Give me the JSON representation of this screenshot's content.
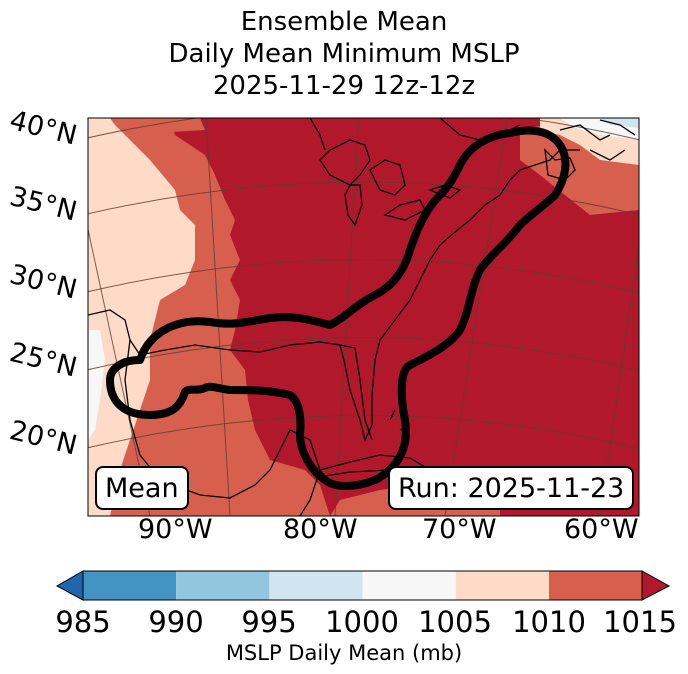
{
  "title": {
    "line1": "Ensemble Mean",
    "line2": "Daily Mean Minimum MSLP",
    "line3": "2025-11-29 12z-12z"
  },
  "map": {
    "lat_labels": [
      "40°N",
      "35°N",
      "30°N",
      "25°N",
      "20°N"
    ],
    "lon_labels": [
      "90°W",
      "80°W",
      "70°W",
      "60°W"
    ],
    "mean_box": "Mean",
    "run_box": "Run: 2025-11-23",
    "fill_colors": {
      "b1000_1005": "#f7f7f7",
      "b1005_1010": "#fddbc7",
      "b1010_1015": "#d6604d",
      "above_1015": "#b2182b",
      "b995_1000": "#d1e5f0"
    },
    "contour_color": "#000000"
  },
  "colorbar": {
    "ticks": [
      "985",
      "990",
      "995",
      "1000",
      "1005",
      "1010",
      "1015"
    ],
    "colors": [
      "#4393c3",
      "#92c5de",
      "#d1e5f0",
      "#f7f7f7",
      "#fddbc7",
      "#d6604d"
    ],
    "under_color": "#2166ac",
    "over_color": "#b2182b",
    "label": "MSLP Daily Mean (mb)"
  }
}
